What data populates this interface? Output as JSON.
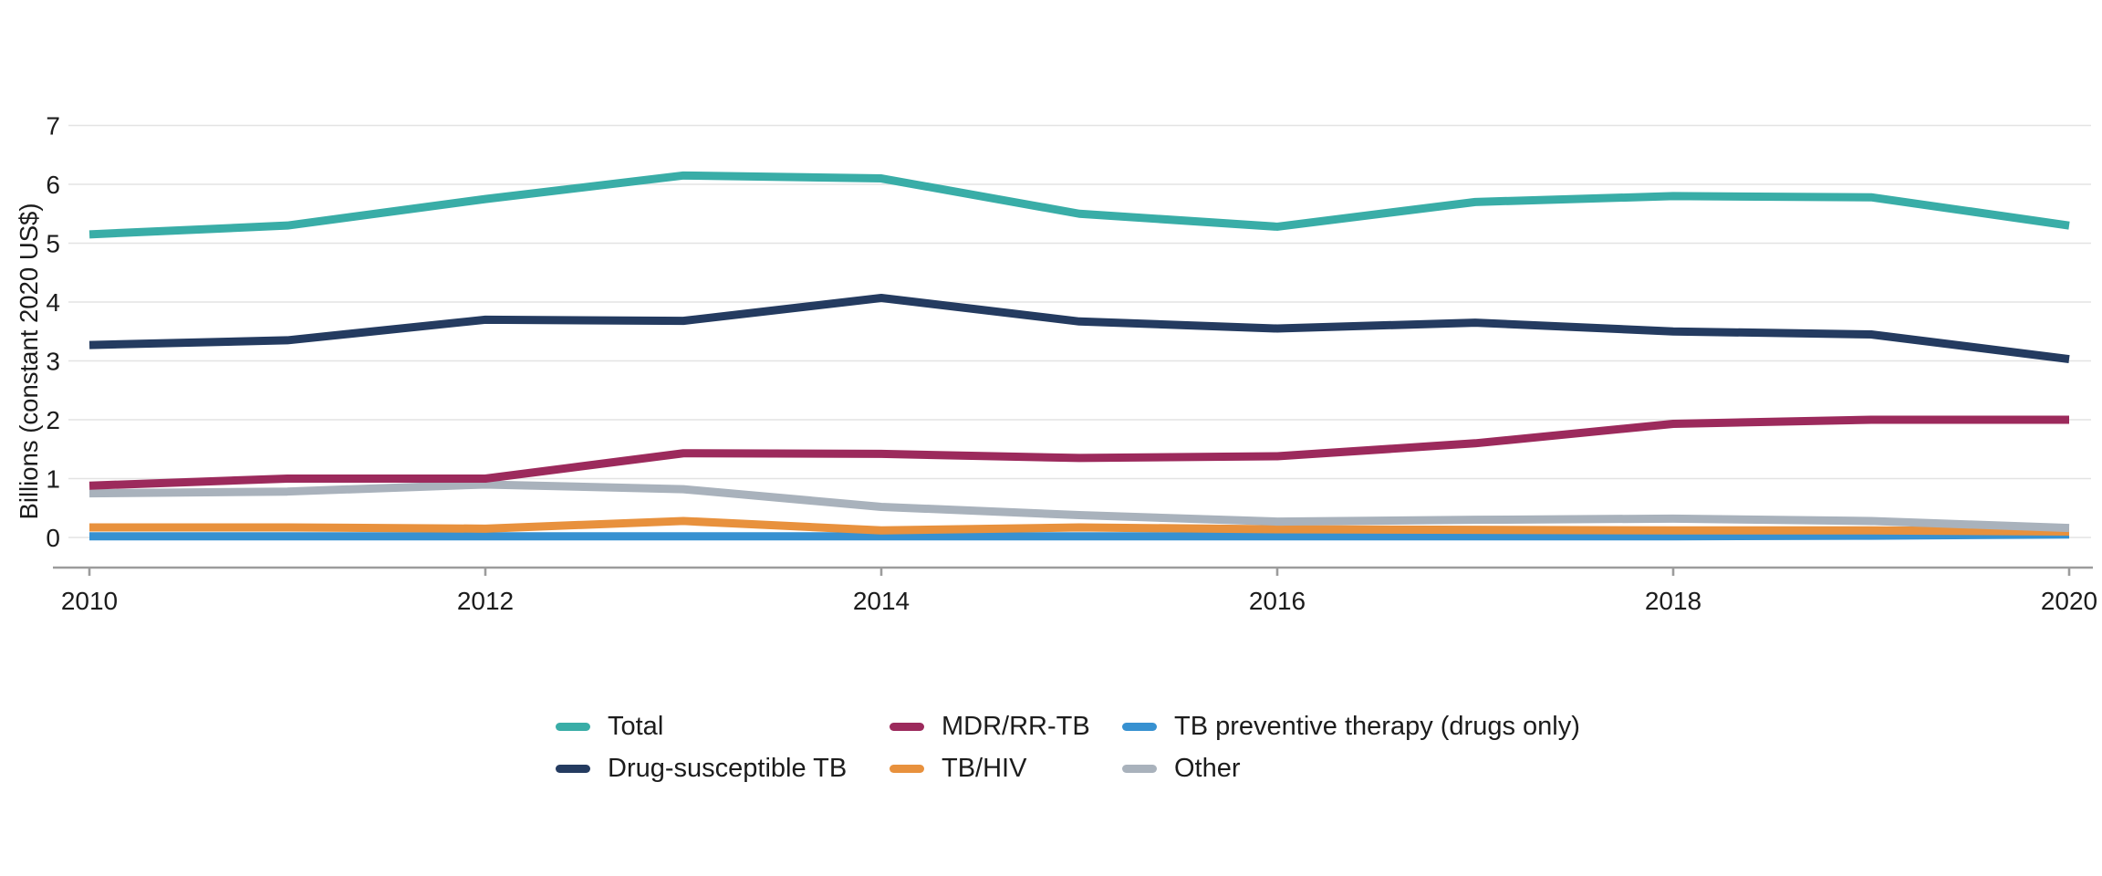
{
  "page": {
    "background_color": "#ffffff"
  },
  "chart_data": {
    "type": "line",
    "title": "",
    "xlabel": "",
    "ylabel": "Billions (constant 2020 US$)",
    "ylim": [
      0,
      7
    ],
    "y_ticks": [
      0,
      1,
      2,
      3,
      4,
      5,
      6,
      7
    ],
    "x": [
      2010,
      2011,
      2012,
      2013,
      2014,
      2015,
      2016,
      2017,
      2018,
      2019,
      2020
    ],
    "x_tick_labels": [
      "2010",
      "2012",
      "2014",
      "2016",
      "2018",
      "2020"
    ],
    "grid": "horizontal-only",
    "legend_position": "bottom-center",
    "colors": {
      "gridline": "#e3e3e3",
      "axis_line": "#9c9c9c",
      "tick_text": "#1c1c1c"
    },
    "series": [
      {
        "name": "Total",
        "color": "#39ada7",
        "values": [
          5.15,
          5.3,
          5.75,
          6.15,
          6.1,
          5.5,
          5.28,
          5.7,
          5.8,
          5.78,
          5.3
        ]
      },
      {
        "name": "Drug-susceptible TB",
        "color": "#243b60",
        "values": [
          3.27,
          3.35,
          3.7,
          3.68,
          4.07,
          3.67,
          3.55,
          3.65,
          3.5,
          3.45,
          3.03
        ]
      },
      {
        "name": "MDR/RR-TB",
        "color": "#9c2a5c",
        "values": [
          0.88,
          1.0,
          1.0,
          1.43,
          1.42,
          1.35,
          1.38,
          1.6,
          1.93,
          2.0,
          2.0
        ]
      },
      {
        "name": "TB/HIV",
        "color": "#e8913d",
        "values": [
          0.17,
          0.17,
          0.15,
          0.28,
          0.12,
          0.17,
          0.14,
          0.13,
          0.12,
          0.12,
          0.1
        ]
      },
      {
        "name": "TB preventive therapy (drugs only)",
        "color": "#3791d1",
        "values": [
          0.02,
          0.02,
          0.02,
          0.02,
          0.02,
          0.02,
          0.02,
          0.02,
          0.02,
          0.03,
          0.05
        ]
      },
      {
        "name": "Other",
        "color": "#a9b2bc",
        "values": [
          0.75,
          0.78,
          0.9,
          0.82,
          0.52,
          0.38,
          0.27,
          0.3,
          0.32,
          0.28,
          0.16
        ]
      }
    ]
  },
  "legend": {
    "columns": [
      [
        0,
        1
      ],
      [
        2,
        3
      ],
      [
        4,
        5
      ]
    ]
  }
}
